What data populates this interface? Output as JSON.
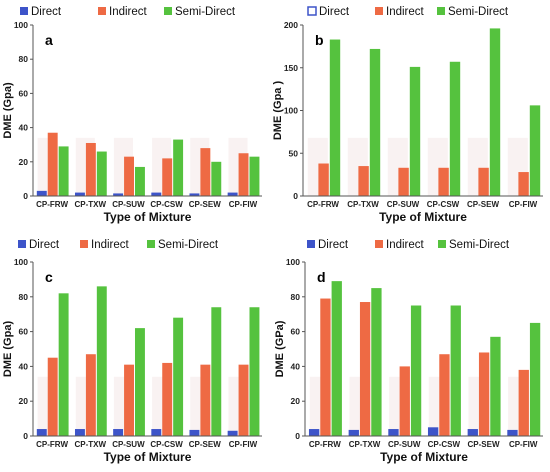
{
  "colors": {
    "direct": "#3d54c9",
    "indirect": "#ee6a44",
    "semi_direct": "#55c23e",
    "shade": "#f6ecec",
    "axis": "#555555"
  },
  "chart_data": [
    {
      "panel": "a",
      "type": "bar",
      "legend": [
        "Direct",
        "Indirect",
        "Semi-Direct"
      ],
      "categories": [
        "CP-FRW",
        "CP-TXW",
        "CP-SUW",
        "CP-CSW",
        "CP-SEW",
        "CP-FIW"
      ],
      "series": [
        {
          "name": "Direct",
          "values": [
            3,
            2,
            1.5,
            2,
            1.5,
            2
          ]
        },
        {
          "name": "Indirect",
          "values": [
            37,
            31,
            23,
            22,
            28,
            25
          ]
        },
        {
          "name": "Semi-Direct",
          "values": [
            29,
            26,
            17,
            33,
            20,
            23
          ]
        }
      ],
      "ylim": [
        0,
        100
      ],
      "yticks": [
        0,
        20,
        40,
        60,
        80,
        100
      ],
      "xlabel": "Type of Mixture",
      "ylabel": "DME (Gpa)",
      "legend_placement": "top"
    },
    {
      "panel": "b",
      "type": "bar",
      "legend": [
        "Direct",
        "Indirect",
        "Semi-Direct"
      ],
      "categories": [
        "CP-FRW",
        "CP-TXW",
        "CP-SUW",
        "CP-CSW",
        "CP-SEW",
        "CP-FIW"
      ],
      "series": [
        {
          "name": "Direct",
          "values": [
            0,
            0,
            0,
            0,
            0,
            0
          ]
        },
        {
          "name": "Indirect",
          "values": [
            38,
            35,
            33,
            33,
            33,
            28
          ]
        },
        {
          "name": "Semi-Direct",
          "values": [
            183,
            172,
            151,
            157,
            196,
            106
          ]
        }
      ],
      "ylim": [
        0,
        200
      ],
      "yticks": [
        0,
        50,
        100,
        150,
        200
      ],
      "xlabel": "Type of Mixture",
      "ylabel": "DME (Gpa )",
      "legend_placement": "top"
    },
    {
      "panel": "c",
      "type": "bar",
      "legend": [
        "Direct",
        "Indirect",
        "Semi-Direct"
      ],
      "categories": [
        "CP-FRW",
        "CP-TXW",
        "CP-SUW",
        "CP-CSW",
        "CP-SEW",
        "CP-FIW"
      ],
      "series": [
        {
          "name": "Direct",
          "values": [
            4,
            4,
            4,
            4,
            3.5,
            3
          ]
        },
        {
          "name": "Indirect",
          "values": [
            45,
            47,
            41,
            42,
            41,
            41
          ]
        },
        {
          "name": "Semi-Direct",
          "values": [
            82,
            86,
            62,
            68,
            74,
            74
          ]
        }
      ],
      "ylim": [
        0,
        100
      ],
      "yticks": [
        0,
        20,
        40,
        60,
        80,
        100
      ],
      "xlabel": "Type of Mixture",
      "ylabel": "DME (Gpa)",
      "legend_placement": "top"
    },
    {
      "panel": "d",
      "type": "bar",
      "legend": [
        "Direct",
        "Indirect",
        "Semi-Direct"
      ],
      "categories": [
        "CP-FRW",
        "CP-TXW",
        "CP-SUW",
        "CP-CSW",
        "CP-SEW",
        "CP-FIW"
      ],
      "series": [
        {
          "name": "Direct",
          "values": [
            4,
            3.5,
            4,
            5,
            4,
            3.5
          ]
        },
        {
          "name": "Indirect",
          "values": [
            79,
            77,
            40,
            47,
            48,
            38
          ]
        },
        {
          "name": "Semi-Direct",
          "values": [
            89,
            85,
            75,
            75,
            57,
            65
          ]
        }
      ],
      "ylim": [
        0,
        100
      ],
      "yticks": [
        0,
        20,
        40,
        60,
        80,
        100
      ],
      "xlabel": "Type of Mixture",
      "ylabel": "DME (GPa)",
      "legend_placement": "top"
    }
  ]
}
